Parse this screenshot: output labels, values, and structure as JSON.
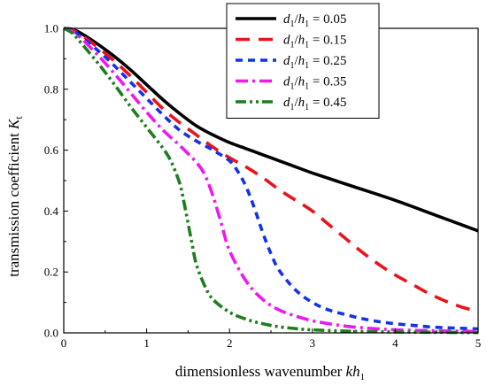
{
  "chart_data": {
    "type": "line",
    "title": "",
    "xlabel": "dimensionless wavenumber kh₁",
    "ylabel": "transmission coefficient Kₜ",
    "xlim": [
      0,
      5
    ],
    "ylim": [
      0,
      1.0
    ],
    "x_ticks": [
      0,
      1,
      2,
      3,
      4,
      5
    ],
    "y_ticks": [
      0.0,
      0.2,
      0.4,
      0.6,
      0.8,
      1.0
    ],
    "x_tick_labels": [
      "0",
      "1",
      "2",
      "3",
      "4",
      "5"
    ],
    "y_tick_labels": [
      "0.0",
      "0.2",
      "0.4",
      "0.6",
      "0.8",
      "1.0"
    ],
    "grid": false,
    "legend_position": "top-right",
    "series": [
      {
        "name": "d₁/h₁ = 0.05",
        "color": "#000000",
        "dash": "solid",
        "x": [
          0,
          0.1,
          0.2,
          0.4,
          0.6,
          0.8,
          1.0,
          1.2,
          1.4,
          1.6,
          1.8,
          2.0,
          2.2,
          2.4,
          2.6,
          2.8,
          3.0,
          3.5,
          4.0,
          4.5,
          5.0
        ],
        "y": [
          1.0,
          0.997,
          0.985,
          0.95,
          0.91,
          0.865,
          0.815,
          0.765,
          0.72,
          0.68,
          0.65,
          0.625,
          0.605,
          0.585,
          0.565,
          0.545,
          0.525,
          0.48,
          0.435,
          0.385,
          0.335
        ]
      },
      {
        "name": "d₁/h₁ = 0.15",
        "color": "#e8141c",
        "dash": "dash",
        "x": [
          0,
          0.1,
          0.2,
          0.4,
          0.6,
          0.8,
          1.0,
          1.2,
          1.4,
          1.6,
          1.8,
          2.0,
          2.2,
          2.4,
          2.6,
          2.8,
          3.0,
          3.2,
          3.4,
          3.6,
          3.8,
          4.0,
          4.2,
          4.4,
          4.6,
          4.8,
          5.0
        ],
        "y": [
          1.0,
          0.995,
          0.98,
          0.94,
          0.895,
          0.845,
          0.79,
          0.735,
          0.69,
          0.65,
          0.61,
          0.575,
          0.545,
          0.51,
          0.47,
          0.435,
          0.4,
          0.355,
          0.31,
          0.265,
          0.225,
          0.19,
          0.16,
          0.13,
          0.105,
          0.085,
          0.07
        ]
      },
      {
        "name": "d₁/h₁ = 0.25",
        "color": "#1432e6",
        "dash": "shortdash",
        "x": [
          0,
          0.1,
          0.2,
          0.4,
          0.6,
          0.8,
          1.0,
          1.2,
          1.4,
          1.6,
          1.8,
          2.0,
          2.1,
          2.2,
          2.3,
          2.4,
          2.5,
          2.6,
          2.8,
          3.0,
          3.2,
          3.4,
          3.6,
          3.8,
          4.0,
          4.2,
          4.4,
          4.6,
          4.8,
          5.0
        ],
        "y": [
          1.0,
          0.995,
          0.975,
          0.93,
          0.88,
          0.825,
          0.77,
          0.715,
          0.665,
          0.63,
          0.6,
          0.565,
          0.53,
          0.48,
          0.41,
          0.33,
          0.26,
          0.205,
          0.14,
          0.1,
          0.075,
          0.06,
          0.047,
          0.037,
          0.03,
          0.025,
          0.02,
          0.017,
          0.015,
          0.013
        ]
      },
      {
        "name": "d₁/h₁ = 0.35",
        "color": "#ee18ee",
        "dash": "dashdot",
        "x": [
          0,
          0.1,
          0.2,
          0.4,
          0.6,
          0.8,
          1.0,
          1.2,
          1.4,
          1.6,
          1.7,
          1.8,
          1.9,
          2.0,
          2.2,
          2.4,
          2.6,
          2.8,
          3.0,
          3.2,
          3.4,
          3.6,
          3.8,
          4.0,
          4.3,
          4.6,
          5.0
        ],
        "y": [
          1.0,
          0.99,
          0.97,
          0.915,
          0.855,
          0.79,
          0.725,
          0.665,
          0.615,
          0.56,
          0.52,
          0.45,
          0.36,
          0.27,
          0.17,
          0.11,
          0.075,
          0.055,
          0.04,
          0.03,
          0.022,
          0.017,
          0.013,
          0.01,
          0.008,
          0.006,
          0.005
        ]
      },
      {
        "name": "d₁/h₁ = 0.45",
        "color": "#1f7d1f",
        "dash": "dashdotdot",
        "x": [
          0,
          0.1,
          0.2,
          0.4,
          0.6,
          0.8,
          1.0,
          1.2,
          1.3,
          1.4,
          1.45,
          1.5,
          1.55,
          1.6,
          1.7,
          1.8,
          2.0,
          2.2,
          2.4,
          2.6,
          2.8,
          3.0,
          3.5,
          4.0,
          4.5,
          5.0
        ],
        "y": [
          1.0,
          0.985,
          0.955,
          0.89,
          0.82,
          0.745,
          0.675,
          0.605,
          0.56,
          0.49,
          0.43,
          0.36,
          0.29,
          0.225,
          0.155,
          0.11,
          0.068,
          0.045,
          0.03,
          0.02,
          0.014,
          0.01,
          0.005,
          0.003,
          0.002,
          0.001
        ]
      }
    ]
  }
}
